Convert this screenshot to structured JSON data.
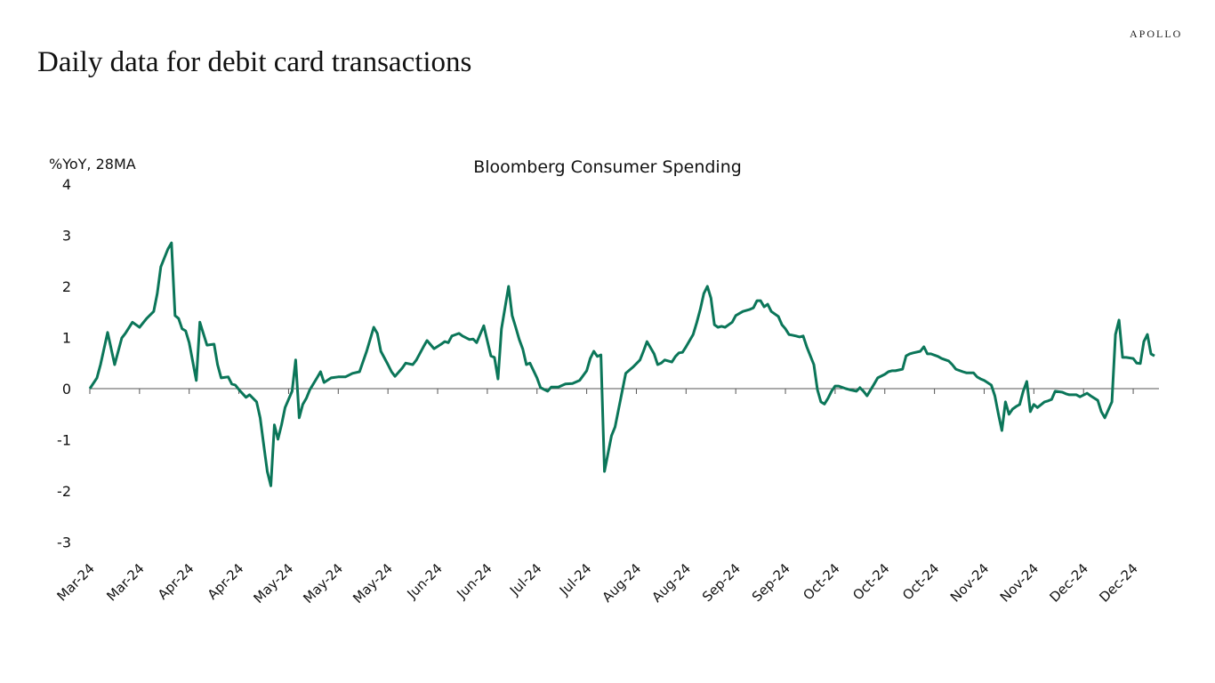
{
  "brand": "APOLLO",
  "title": "Daily data for debit card transactions",
  "chart_data": {
    "type": "line",
    "title": "Bloomberg Consumer Spending",
    "ylabel": "%YoY, 28MA",
    "xlabel": "",
    "ylim": [
      -3,
      4
    ],
    "yticks": [
      4,
      3,
      2,
      1,
      0,
      -1,
      -2,
      -3
    ],
    "xlim_days": [
      0,
      300
    ],
    "xtick_every_days": 14,
    "xtick_labels": [
      "Mar-24",
      "Mar-24",
      "Apr-24",
      "Apr-24",
      "May-24",
      "May-24",
      "May-24",
      "Jun-24",
      "Jun-24",
      "Jul-24",
      "Jul-24",
      "Aug-24",
      "Aug-24",
      "Sep-24",
      "Sep-24",
      "Oct-24",
      "Oct-24",
      "Oct-24",
      "Nov-24",
      "Nov-24",
      "Dec-24",
      "Dec-24"
    ],
    "grid": false,
    "line_color": "#0b7659",
    "series": [
      {
        "name": "Bloomberg Consumer Spending",
        "x_unit": "days since start",
        "points": [
          [
            0,
            0
          ],
          [
            2,
            0.21
          ],
          [
            3,
            0.47
          ],
          [
            5,
            1.1
          ],
          [
            7,
            0.47
          ],
          [
            9,
            0.99
          ],
          [
            10,
            1.08
          ],
          [
            12,
            1.3
          ],
          [
            14,
            1.2
          ],
          [
            16,
            1.37
          ],
          [
            18,
            1.51
          ],
          [
            19,
            1.86
          ],
          [
            20,
            2.38
          ],
          [
            22,
            2.73
          ],
          [
            23,
            2.85
          ],
          [
            24,
            1.43
          ],
          [
            25,
            1.37
          ],
          [
            26,
            1.17
          ],
          [
            27,
            1.13
          ],
          [
            28,
            0.9
          ],
          [
            30,
            0.16
          ],
          [
            31,
            1.3
          ],
          [
            33,
            0.85
          ],
          [
            35,
            0.87
          ],
          [
            36,
            0.47
          ],
          [
            37,
            0.21
          ],
          [
            39,
            0.23
          ],
          [
            40,
            0.09
          ],
          [
            41,
            0.07
          ],
          [
            42,
            -0.02
          ],
          [
            44,
            -0.17
          ],
          [
            45,
            -0.12
          ],
          [
            47,
            -0.26
          ],
          [
            48,
            -0.57
          ],
          [
            49,
            -1.1
          ],
          [
            50,
            -1.62
          ],
          [
            51,
            -1.9
          ],
          [
            52,
            -0.71
          ],
          [
            53,
            -0.99
          ],
          [
            54,
            -0.71
          ],
          [
            55,
            -0.37
          ],
          [
            57,
            -0.05
          ],
          [
            58,
            0.56
          ],
          [
            59,
            -0.57
          ],
          [
            60,
            -0.31
          ],
          [
            61,
            -0.19
          ],
          [
            62,
            -0.02
          ],
          [
            64,
            0.21
          ],
          [
            65,
            0.33
          ],
          [
            66,
            0.12
          ],
          [
            68,
            0.21
          ],
          [
            70,
            0.23
          ],
          [
            72,
            0.23
          ],
          [
            74,
            0.3
          ],
          [
            76,
            0.33
          ],
          [
            78,
            0.73
          ],
          [
            80,
            1.2
          ],
          [
            81,
            1.08
          ],
          [
            82,
            0.73
          ],
          [
            84,
            0.47
          ],
          [
            85,
            0.33
          ],
          [
            86,
            0.24
          ],
          [
            88,
            0.4
          ],
          [
            89,
            0.5
          ],
          [
            91,
            0.47
          ],
          [
            92,
            0.56
          ],
          [
            94,
            0.82
          ],
          [
            95,
            0.94
          ],
          [
            97,
            0.78
          ],
          [
            99,
            0.87
          ],
          [
            100,
            0.92
          ],
          [
            101,
            0.9
          ],
          [
            102,
            1.03
          ],
          [
            104,
            1.08
          ],
          [
            105,
            1.03
          ],
          [
            107,
            0.96
          ],
          [
            108,
            0.97
          ],
          [
            109,
            0.9
          ],
          [
            111,
            1.23
          ],
          [
            113,
            0.64
          ],
          [
            114,
            0.61
          ],
          [
            115,
            0.19
          ],
          [
            116,
            1.17
          ],
          [
            118,
            2.0
          ],
          [
            119,
            1.43
          ],
          [
            120,
            1.2
          ],
          [
            121,
            0.96
          ],
          [
            122,
            0.77
          ],
          [
            123,
            0.47
          ],
          [
            124,
            0.5
          ],
          [
            126,
            0.21
          ],
          [
            127,
            0.02
          ],
          [
            129,
            -0.05
          ],
          [
            130,
            0.03
          ],
          [
            132,
            0.03
          ],
          [
            134,
            0.09
          ],
          [
            136,
            0.1
          ],
          [
            138,
            0.16
          ],
          [
            140,
            0.35
          ],
          [
            141,
            0.59
          ],
          [
            142,
            0.73
          ],
          [
            143,
            0.63
          ],
          [
            144,
            0.66
          ],
          [
            145,
            -1.62
          ],
          [
            147,
            -0.92
          ],
          [
            148,
            -0.75
          ],
          [
            149,
            -0.4
          ],
          [
            150,
            -0.05
          ],
          [
            151,
            0.3
          ],
          [
            153,
            0.42
          ],
          [
            155,
            0.56
          ],
          [
            156,
            0.73
          ],
          [
            157,
            0.92
          ],
          [
            159,
            0.68
          ],
          [
            160,
            0.47
          ],
          [
            161,
            0.5
          ],
          [
            162,
            0.56
          ],
          [
            164,
            0.52
          ],
          [
            165,
            0.63
          ],
          [
            166,
            0.7
          ],
          [
            167,
            0.71
          ],
          [
            168,
            0.82
          ],
          [
            170,
            1.06
          ],
          [
            171,
            1.29
          ],
          [
            172,
            1.55
          ],
          [
            173,
            1.86
          ],
          [
            174,
            2.0
          ],
          [
            175,
            1.77
          ],
          [
            176,
            1.25
          ],
          [
            177,
            1.2
          ],
          [
            178,
            1.22
          ],
          [
            179,
            1.2
          ],
          [
            181,
            1.3
          ],
          [
            182,
            1.43
          ],
          [
            184,
            1.51
          ],
          [
            186,
            1.55
          ],
          [
            187,
            1.58
          ],
          [
            188,
            1.72
          ],
          [
            189,
            1.72
          ],
          [
            190,
            1.6
          ],
          [
            191,
            1.65
          ],
          [
            192,
            1.51
          ],
          [
            194,
            1.41
          ],
          [
            195,
            1.25
          ],
          [
            196,
            1.17
          ],
          [
            197,
            1.06
          ],
          [
            199,
            1.03
          ],
          [
            200,
            1.01
          ],
          [
            201,
            1.03
          ],
          [
            202,
            0.82
          ],
          [
            204,
            0.47
          ],
          [
            205,
            -0.02
          ],
          [
            206,
            -0.26
          ],
          [
            207,
            -0.3
          ],
          [
            208,
            -0.19
          ],
          [
            209,
            -0.05
          ],
          [
            210,
            0.05
          ],
          [
            211,
            0.05
          ],
          [
            213,
            0
          ],
          [
            214,
            -0.02
          ],
          [
            216,
            -0.05
          ],
          [
            217,
            0.02
          ],
          [
            218,
            -0.05
          ],
          [
            219,
            -0.14
          ],
          [
            221,
            0.09
          ],
          [
            222,
            0.21
          ],
          [
            224,
            0.28
          ],
          [
            225,
            0.33
          ],
          [
            226,
            0.35
          ],
          [
            227,
            0.35
          ],
          [
            229,
            0.38
          ],
          [
            230,
            0.64
          ],
          [
            231,
            0.68
          ],
          [
            232,
            0.7
          ],
          [
            234,
            0.73
          ],
          [
            235,
            0.82
          ],
          [
            236,
            0.68
          ],
          [
            237,
            0.68
          ],
          [
            239,
            0.63
          ],
          [
            240,
            0.59
          ],
          [
            242,
            0.54
          ],
          [
            243,
            0.47
          ],
          [
            244,
            0.38
          ],
          [
            246,
            0.33
          ],
          [
            247,
            0.31
          ],
          [
            249,
            0.31
          ],
          [
            250,
            0.23
          ],
          [
            251,
            0.19
          ],
          [
            252,
            0.16
          ],
          [
            254,
            0.07
          ],
          [
            255,
            -0.14
          ],
          [
            256,
            -0.49
          ],
          [
            257,
            -0.82
          ],
          [
            258,
            -0.26
          ],
          [
            259,
            -0.5
          ],
          [
            260,
            -0.4
          ],
          [
            261,
            -0.35
          ],
          [
            262,
            -0.31
          ],
          [
            263,
            -0.05
          ],
          [
            264,
            0.14
          ],
          [
            265,
            -0.45
          ],
          [
            266,
            -0.31
          ],
          [
            267,
            -0.37
          ],
          [
            269,
            -0.26
          ],
          [
            270,
            -0.24
          ],
          [
            271,
            -0.21
          ],
          [
            272,
            -0.05
          ],
          [
            274,
            -0.07
          ],
          [
            275,
            -0.1
          ],
          [
            276,
            -0.12
          ],
          [
            278,
            -0.12
          ],
          [
            279,
            -0.16
          ],
          [
            281,
            -0.09
          ],
          [
            282,
            -0.14
          ],
          [
            284,
            -0.23
          ],
          [
            285,
            -0.45
          ],
          [
            286,
            -0.57
          ],
          [
            288,
            -0.26
          ],
          [
            289,
            1.06
          ],
          [
            290,
            1.34
          ],
          [
            291,
            0.61
          ],
          [
            292,
            0.61
          ],
          [
            294,
            0.59
          ],
          [
            295,
            0.5
          ],
          [
            296,
            0.49
          ],
          [
            297,
            0.92
          ],
          [
            298,
            1.06
          ],
          [
            299,
            0.68
          ],
          [
            300,
            0.64
          ]
        ]
      }
    ]
  }
}
